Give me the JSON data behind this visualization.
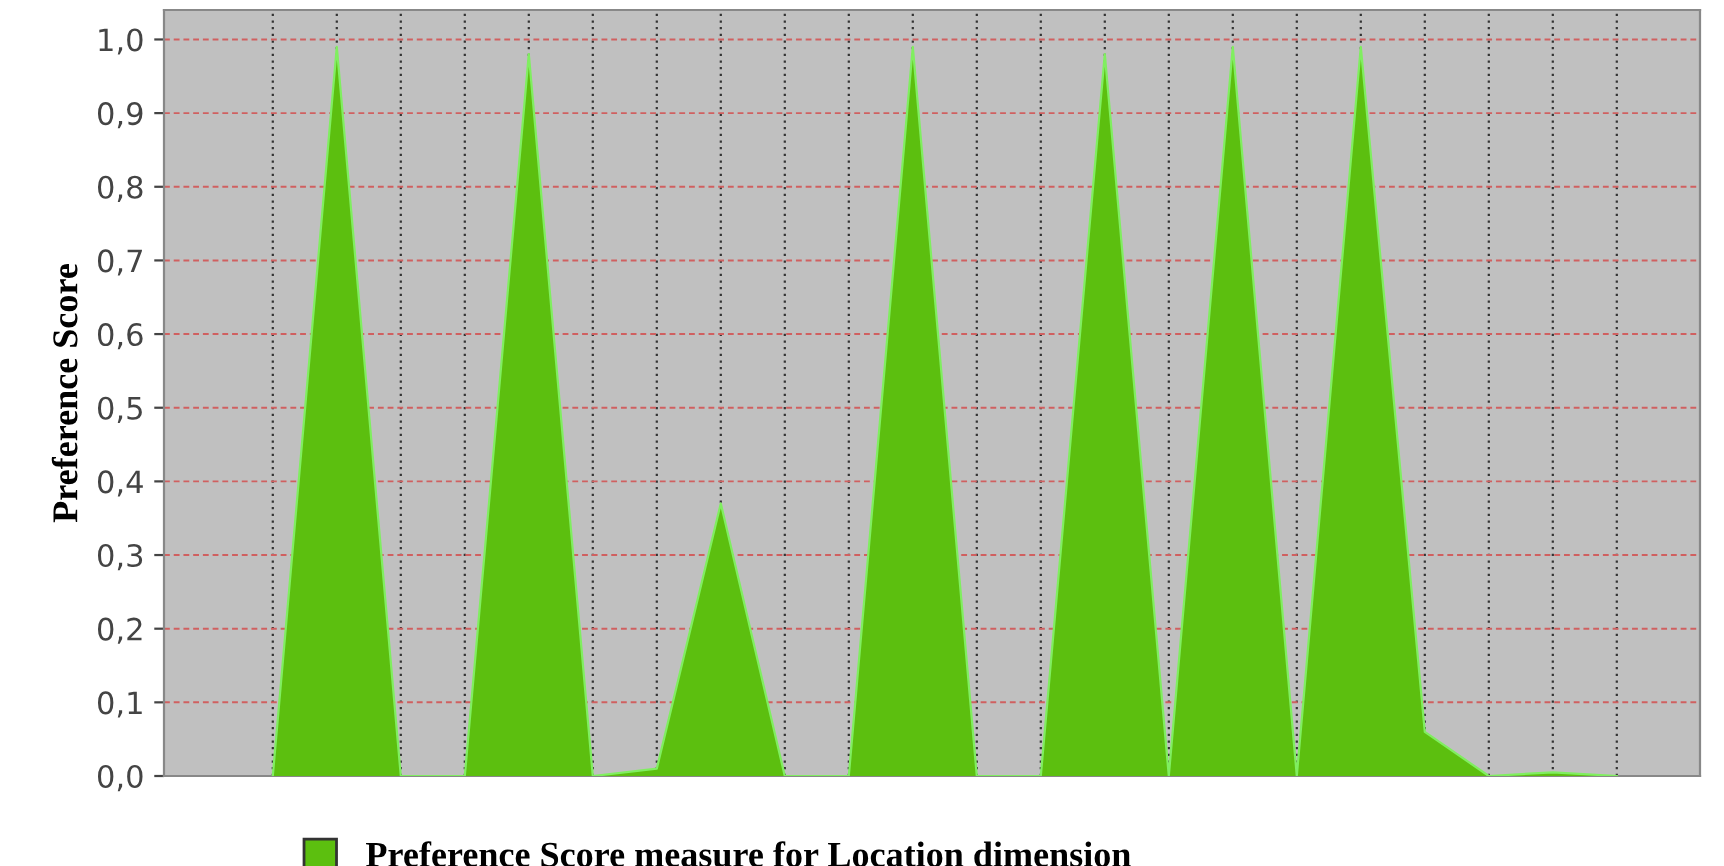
{
  "chart_data": {
    "type": "area",
    "ylabel": "Preference Score",
    "categories": [
      null,
      null,
      null,
      null,
      null,
      null,
      null,
      null,
      null,
      null,
      null,
      null,
      null,
      null,
      null,
      null,
      null,
      null,
      null,
      null,
      null,
      null
    ],
    "series": [
      {
        "name": "Preference Score measure for Location dimension",
        "color": "#5cbf0f",
        "values": [
          0,
          0.99,
          0,
          0,
          0.98,
          0,
          0.01,
          0.37,
          0,
          0,
          0.99,
          0,
          0,
          0.98,
          0,
          0.99,
          0,
          0.99,
          0.06,
          0,
          0.005,
          0
        ]
      }
    ],
    "ylim": [
      0,
      1.04
    ],
    "yticks": [
      {
        "value": 0,
        "label": "0,0"
      },
      {
        "value": 0.1,
        "label": "0,1"
      },
      {
        "value": 0.2,
        "label": "0,2"
      },
      {
        "value": 0.3,
        "label": "0,3"
      },
      {
        "value": 0.4,
        "label": "0,4"
      },
      {
        "value": 0.5,
        "label": "0,5"
      },
      {
        "value": 0.6,
        "label": "0,6"
      },
      {
        "value": 0.7,
        "label": "0,7"
      },
      {
        "value": 0.8,
        "label": "0,8"
      },
      {
        "value": 0.9,
        "label": "0,9"
      },
      {
        "value": 1.0,
        "label": "1,0"
      }
    ],
    "grid": true,
    "legend": "bottom"
  }
}
